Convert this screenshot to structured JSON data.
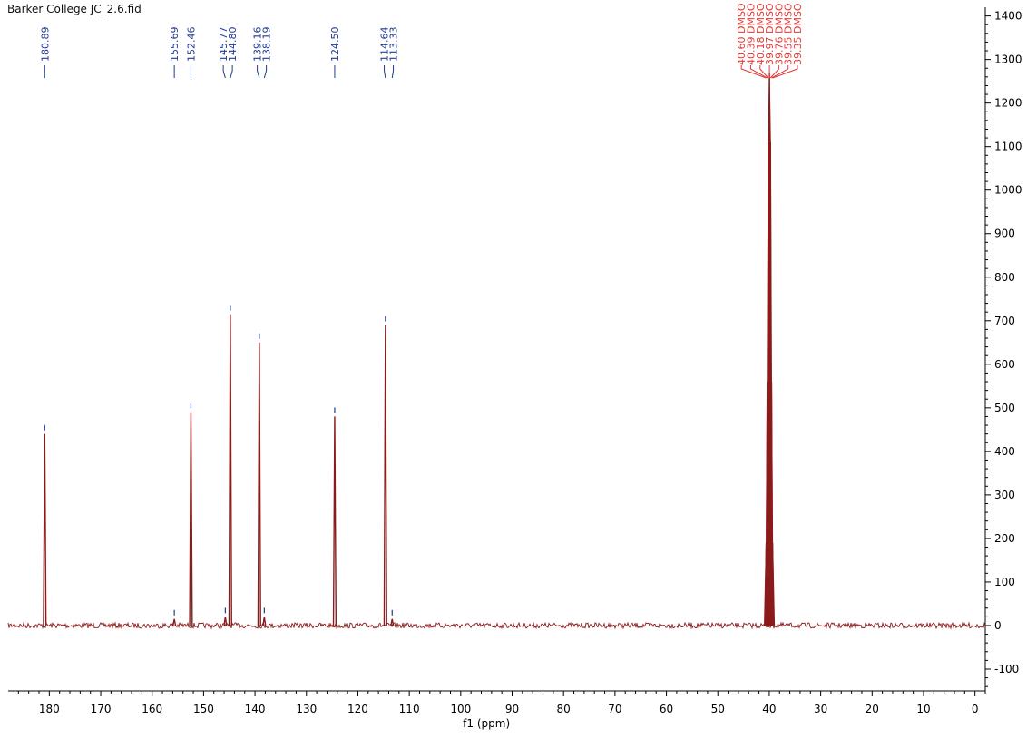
{
  "window": {
    "file_title": "Barker College JC_2.6.fid"
  },
  "colors": {
    "spectrum": "#8b1a1a",
    "peak_label_aromatic": "#1f3a93",
    "peak_label_solvent": "#e53935",
    "axis": "#000000"
  },
  "chart_data": {
    "type": "line",
    "title": "Barker College JC_2.6.fid",
    "xlabel": "f1 (ppm)",
    "ylabel": "",
    "xlim": [
      188,
      -2
    ],
    "ylim": [
      -150,
      1420
    ],
    "x_reversed": true,
    "grid": false,
    "x_ticks": [
      180,
      170,
      160,
      150,
      140,
      130,
      120,
      110,
      100,
      90,
      80,
      70,
      60,
      50,
      40,
      30,
      20,
      10,
      0
    ],
    "x_tick_labels": [
      "180",
      "170",
      "160",
      "150",
      "140",
      "130",
      "120",
      "110",
      "100",
      "90",
      "80",
      "70",
      "60",
      "50",
      "40",
      "30",
      "20",
      "10",
      "0"
    ],
    "y_ticks": [
      1400,
      1300,
      1200,
      1100,
      1000,
      900,
      800,
      700,
      600,
      500,
      400,
      300,
      200,
      100,
      0,
      -100
    ],
    "y_tick_labels": [
      "1400",
      "1300",
      "1200",
      "1100",
      "1000",
      "900",
      "800",
      "700",
      "600",
      "500",
      "400",
      "300",
      "200",
      "100",
      "0",
      "-100"
    ],
    "y_axis_side": "right",
    "series": [
      {
        "peaks": [
          {
            "ppm": 180.89,
            "intensity": 440
          },
          {
            "ppm": 155.69,
            "intensity": 15
          },
          {
            "ppm": 152.46,
            "intensity": 490
          },
          {
            "ppm": 145.77,
            "intensity": 20
          },
          {
            "ppm": 144.8,
            "intensity": 715
          },
          {
            "ppm": 139.16,
            "intensity": 650
          },
          {
            "ppm": 138.19,
            "intensity": 20
          },
          {
            "ppm": 124.5,
            "intensity": 480
          },
          {
            "ppm": 114.64,
            "intensity": 690
          },
          {
            "ppm": 113.33,
            "intensity": 15
          },
          {
            "ppm": 40.6,
            "intensity": 190
          },
          {
            "ppm": 40.39,
            "intensity": 560
          },
          {
            "ppm": 40.18,
            "intensity": 1110
          },
          {
            "ppm": 39.97,
            "intensity": 1270
          },
          {
            "ppm": 39.76,
            "intensity": 1110
          },
          {
            "ppm": 39.55,
            "intensity": 560
          },
          {
            "ppm": 39.35,
            "intensity": 190
          }
        ]
      }
    ],
    "peak_labels": [
      {
        "ppm": 180.89,
        "text": "180.89",
        "group": "aromatic",
        "intensity": 440
      },
      {
        "ppm": 155.69,
        "text": "155.69",
        "group": "aromatic",
        "intensity": 15
      },
      {
        "ppm": 152.46,
        "text": "152.46",
        "group": "aromatic",
        "intensity": 490
      },
      {
        "ppm": 145.77,
        "text": "145.77",
        "group": "aromatic",
        "intensity": 20
      },
      {
        "ppm": 144.8,
        "text": "144.80",
        "group": "aromatic",
        "intensity": 715
      },
      {
        "ppm": 139.16,
        "text": "139.16",
        "group": "aromatic",
        "intensity": 650
      },
      {
        "ppm": 138.19,
        "text": "138.19",
        "group": "aromatic",
        "intensity": 20
      },
      {
        "ppm": 124.5,
        "text": "124.50",
        "group": "aromatic",
        "intensity": 480
      },
      {
        "ppm": 114.64,
        "text": "114.64",
        "group": "aromatic",
        "intensity": 690
      },
      {
        "ppm": 113.33,
        "text": "113.33",
        "group": "aromatic",
        "intensity": 15
      },
      {
        "ppm": 40.6,
        "text": "40.60 DMSO",
        "group": "solvent",
        "intensity": 190
      },
      {
        "ppm": 40.39,
        "text": "40.39 DMSO",
        "group": "solvent",
        "intensity": 560
      },
      {
        "ppm": 40.18,
        "text": "40.18 DMSO",
        "group": "solvent",
        "intensity": 1110
      },
      {
        "ppm": 39.97,
        "text": "39.97 DMSO",
        "group": "solvent",
        "intensity": 1270
      },
      {
        "ppm": 39.76,
        "text": "39.76 DMSO",
        "group": "solvent",
        "intensity": 1110
      },
      {
        "ppm": 39.55,
        "text": "39.55 DMSO",
        "group": "solvent",
        "intensity": 560
      },
      {
        "ppm": 39.35,
        "text": "39.35 DMSO",
        "group": "solvent",
        "intensity": 190
      }
    ]
  }
}
